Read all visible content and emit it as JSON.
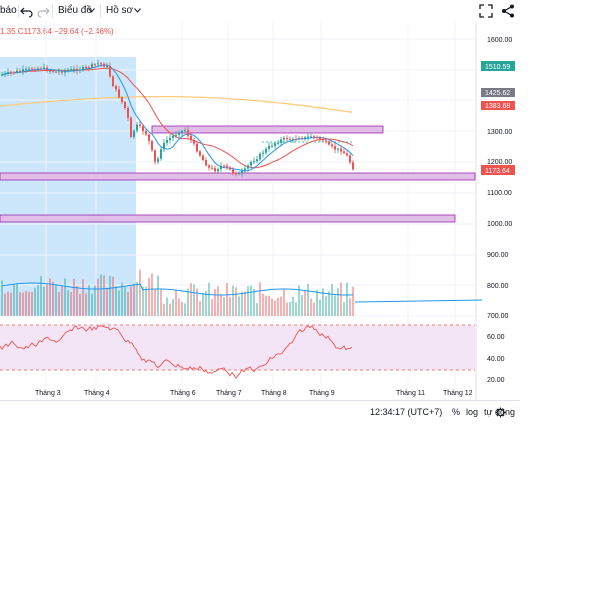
{
  "toolbar": {
    "alerts_label": "báo",
    "chart_label": "Biểu đồ",
    "profile_label": "Hồ sơ"
  },
  "legend": {
    "ohlc_text": "1.35  C1173.64  −29.64 (−2.46%)"
  },
  "price_labels": {
    "p1600": "1600.00",
    "p1500": "1510.59",
    "p1425": "1425.62",
    "p1383": "1383.68",
    "p1300": "1300.00",
    "p1200": "1200.00",
    "p1173": "1173.64",
    "p1100": "1100.00",
    "p1000": "1000.00",
    "p900": "900.00",
    "p800": "800.00",
    "p700": "700.00",
    "r60": "60.00",
    "r40": "40.00",
    "r20": "20.00"
  },
  "price_label_colors": {
    "p1500": "#26a69a",
    "p1425": "#787b86",
    "p1383": "#ef5350",
    "p1173": "#ef5350"
  },
  "time_labels": {
    "m3": "Tháng 3",
    "m4": "Tháng 4",
    "m6": "Tháng 6",
    "m7": "Tháng 7",
    "m8": "Tháng 8",
    "m9": "Tháng 9",
    "m11": "Tháng 11",
    "m12": "Tháng 12"
  },
  "bottom_bar": {
    "clock": "12:34:17 (UTC+7)",
    "percent": "%",
    "log": "log",
    "auto": "tự động"
  },
  "colors": {
    "up": "#26a69a",
    "down": "#ef5350",
    "highlight": "#bbdefb",
    "zone_fill": "#e1bee7",
    "zone_stroke": "#9c27b0",
    "rsi_band": "#f3e5f5",
    "ma_red": "#ef5350",
    "ma_orange": "#ffcc80",
    "ma_blue": "#2196f3"
  },
  "icons": [
    "undo-icon",
    "redo-icon",
    "chevron-down-icon",
    "fullscreen-icon",
    "share-icon",
    "settings-icon"
  ]
}
